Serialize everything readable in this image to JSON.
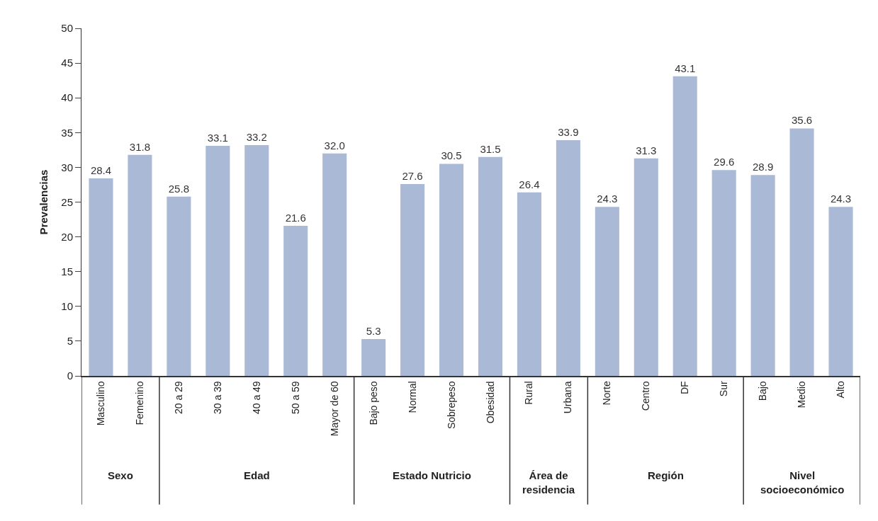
{
  "chart_data": {
    "type": "bar",
    "ylabel": "Prevalencias",
    "categories": [
      "Masculino",
      "Femenino",
      "20 a 29",
      "30 a 39",
      "40 a 49",
      "50 a 59",
      "Mayor de 60",
      "Bajo peso",
      "Normal",
      "Sobrepeso",
      "Obesidad",
      "Rural",
      "Urbana",
      "Norte",
      "Centro",
      "DF",
      "Sur",
      "Bajo",
      "Medio",
      "Alto"
    ],
    "values": [
      28.4,
      31.8,
      25.8,
      33.1,
      33.2,
      21.6,
      32.0,
      5.3,
      27.6,
      30.5,
      31.5,
      26.4,
      33.9,
      24.3,
      31.3,
      43.1,
      29.6,
      28.9,
      35.6,
      24.3
    ],
    "value_labels": [
      "28.4",
      "31.8",
      "25.8",
      "33.1",
      "33.2",
      "21.6",
      "32.0",
      "5.3",
      "27.6",
      "30.5",
      "31.5",
      "26.4",
      "33.9",
      "24.3",
      "31.3",
      "43.1",
      "29.6",
      "28.9",
      "35.6",
      "24.3"
    ],
    "color": "#a9b9d6",
    "ylim": [
      0,
      50
    ],
    "yticks": [
      0,
      5,
      10,
      15,
      20,
      25,
      30,
      35,
      40,
      45,
      50
    ],
    "legend": false,
    "annotations": [
      "Sexo",
      "Edad",
      "Estado Nutricio",
      "Área de\nresidencia",
      "Región",
      "Nivel\nsocioeconómico"
    ]
  }
}
